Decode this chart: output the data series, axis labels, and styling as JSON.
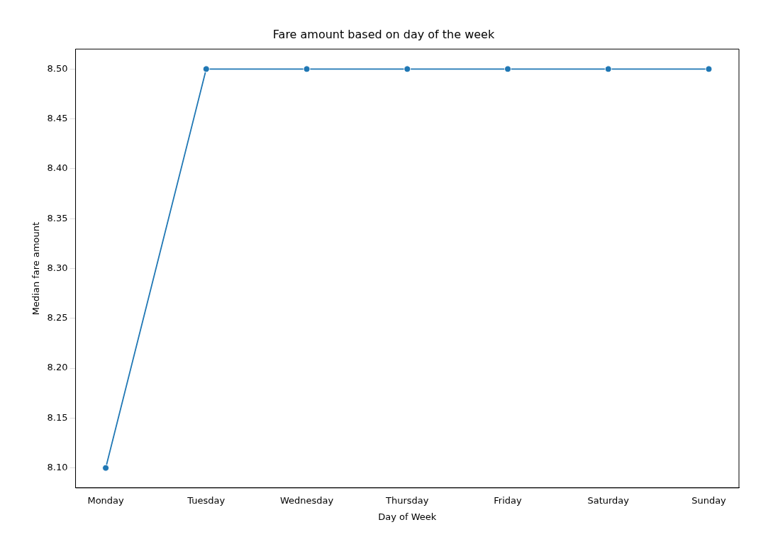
{
  "chart_data": {
    "type": "line",
    "title": "Fare amount based on day of the week",
    "xlabel": "Day of Week",
    "ylabel": "Median fare amount",
    "categories": [
      "Monday",
      "Tuesday",
      "Wednesday",
      "Thursday",
      "Friday",
      "Saturday",
      "Sunday"
    ],
    "series": [
      {
        "color": "#1f77b4",
        "values": [
          8.1,
          8.5,
          8.5,
          8.5,
          8.5,
          8.5,
          8.5
        ]
      }
    ],
    "ylim": [
      8.08,
      8.52
    ],
    "yticks": [
      {
        "value": 8.1,
        "label": "8.10"
      },
      {
        "value": 8.15,
        "label": "8.15"
      },
      {
        "value": 8.2,
        "label": "8.20"
      },
      {
        "value": 8.25,
        "label": "8.25"
      },
      {
        "value": 8.3,
        "label": "8.30"
      },
      {
        "value": 8.35,
        "label": "8.35"
      },
      {
        "value": 8.4,
        "label": "8.40"
      },
      {
        "value": 8.45,
        "label": "8.45"
      },
      {
        "value": 8.5,
        "label": "8.50"
      }
    ],
    "grid": false,
    "legend": false,
    "marker": "circle",
    "line_style": "solid"
  }
}
